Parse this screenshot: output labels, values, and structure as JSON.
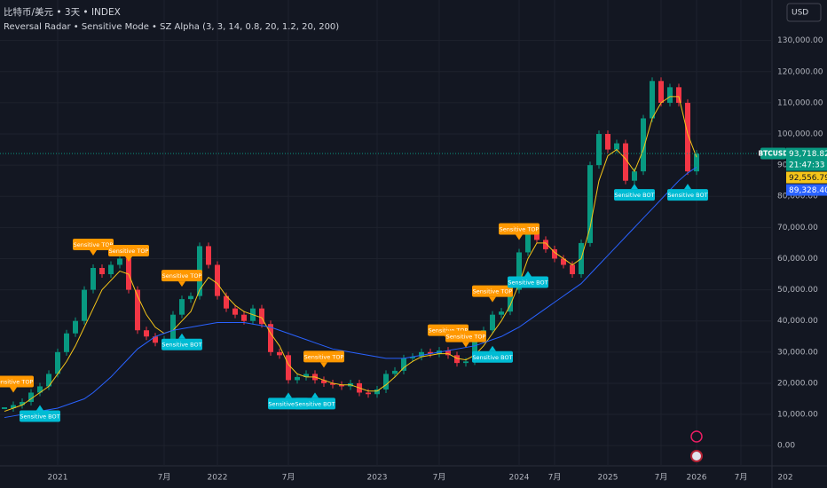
{
  "chart_data": {
    "type": "candlestick",
    "title": "比特币/美元 • 3天 • INDEX",
    "subtitle": "Reversal Radar • Sensitive Mode • SZ Alpha (3, 3, 14, 0.8, 20, 1.2, 20, 200)",
    "currency": "USD",
    "categories": [
      null,
      null,
      null,
      null,
      null,
      null,
      "2021",
      null,
      null,
      null,
      null,
      null,
      null,
      null,
      null,
      null,
      null,
      null,
      "7月",
      null,
      null,
      null,
      null,
      null,
      "2022",
      null,
      null,
      null,
      null,
      null,
      null,
      null,
      "7月",
      null,
      null,
      null,
      null,
      null,
      null,
      null,
      null,
      null,
      "2023",
      null,
      null,
      null,
      null,
      null,
      null,
      "7月",
      null,
      null,
      null,
      null,
      null,
      null,
      null,
      null,
      "2024",
      null,
      null,
      null,
      "7月",
      null,
      null,
      null,
      null,
      null,
      "2025",
      null,
      null,
      null,
      null,
      null,
      "7月",
      null,
      null,
      null,
      "2026",
      null,
      null,
      null,
      null,
      "7月",
      null,
      null,
      null,
      null,
      "202"
    ],
    "candles": {
      "up_color": "#089981",
      "down_color": "#f23645",
      "values": [
        12000,
        13000,
        14000,
        17000,
        19000,
        23000,
        30000,
        36000,
        40000,
        50000,
        57000,
        55000,
        58000,
        60000,
        50000,
        37000,
        35000,
        33000,
        34000,
        42000,
        47000,
        48000,
        64000,
        58000,
        48000,
        44000,
        42000,
        40000,
        44000,
        39000,
        30000,
        29000,
        21000,
        22000,
        23000,
        21000,
        20000,
        19500,
        19000,
        20000,
        17000,
        16500,
        18000,
        23000,
        24000,
        28000,
        28500,
        30000,
        29500,
        30500,
        29000,
        26500,
        27000,
        34000,
        37000,
        42000,
        43000,
        50000,
        62000,
        70000,
        66000,
        63000,
        60000,
        58000,
        55000,
        65000,
        90000,
        100000,
        95000,
        97000,
        85000,
        88000,
        105000,
        117000,
        110000,
        115000,
        110000,
        88000,
        93718.82,
        null,
        null,
        null,
        null,
        null,
        null,
        null,
        null,
        null,
        null
      ]
    },
    "series": [
      {
        "color": "#f5c518",
        "values": [
          11000,
          12000,
          13000,
          15000,
          17000,
          19000,
          23000,
          27000,
          32000,
          38000,
          44000,
          50000,
          53000,
          56000,
          55000,
          48000,
          42000,
          38000,
          36000,
          37000,
          40000,
          43000,
          50000,
          54000,
          52000,
          48000,
          45000,
          43000,
          42000,
          41000,
          36000,
          32000,
          26000,
          23000,
          22000,
          22000,
          21000,
          20000,
          19500,
          19500,
          18500,
          17500,
          17500,
          19500,
          22000,
          25000,
          27000,
          28500,
          29000,
          29500,
          29500,
          28000,
          27500,
          29000,
          32000,
          36000,
          40000,
          45000,
          52000,
          60000,
          65000,
          65000,
          62000,
          60000,
          58000,
          60000,
          70000,
          85000,
          93000,
          95000,
          92000,
          88000,
          95000,
          105000,
          110000,
          112000,
          112000,
          100000,
          92556.79,
          null,
          null,
          null,
          null,
          null,
          null,
          null,
          null,
          null,
          null
        ]
      },
      {
        "color": "#2962ff",
        "values": [
          9000,
          9500,
          10000,
          10500,
          11000,
          11500,
          12000,
          13000,
          14000,
          15000,
          17000,
          19500,
          22000,
          25000,
          28000,
          31000,
          33000,
          35000,
          36000,
          37000,
          37500,
          38000,
          38500,
          39000,
          39500,
          39500,
          39500,
          39500,
          39000,
          38500,
          38000,
          37000,
          36000,
          35000,
          34000,
          33000,
          32000,
          31000,
          30500,
          30000,
          29500,
          29000,
          28500,
          28000,
          28000,
          28000,
          28500,
          29000,
          29500,
          30000,
          30500,
          31000,
          31500,
          32000,
          33000,
          34000,
          35000,
          36500,
          38000,
          40000,
          42000,
          44000,
          46000,
          48000,
          50000,
          52000,
          55000,
          58000,
          61000,
          64000,
          67000,
          70000,
          73000,
          76000,
          79000,
          82000,
          85000,
          87500,
          89328.4,
          null,
          null,
          null,
          null,
          null,
          null,
          null,
          null,
          null,
          null
        ]
      }
    ],
    "annotations": [
      {
        "index": 1,
        "text": "Sensitive TOP",
        "kind": "top",
        "color": "#ff9800"
      },
      {
        "index": 4,
        "text": "Sensitive BOT",
        "kind": "bot",
        "color": "#00bcd4"
      },
      {
        "index": 10,
        "text": "Sensitive TOP",
        "kind": "top",
        "color": "#ff9800"
      },
      {
        "index": 14,
        "text": "Sensitive TOP",
        "kind": "top",
        "color": "#ff9800"
      },
      {
        "index": 20,
        "text": "Sensitive TOP",
        "kind": "top",
        "color": "#ff9800"
      },
      {
        "index": 20,
        "text": "Sensitive BOT",
        "kind": "bot",
        "color": "#00bcd4"
      },
      {
        "index": 32,
        "text": "Sensitive BOT",
        "kind": "bot",
        "color": "#00bcd4"
      },
      {
        "index": 35,
        "text": "Sensitive BOT",
        "kind": "bot",
        "color": "#00bcd4"
      },
      {
        "index": 36,
        "text": "Sensitive TOP",
        "kind": "top",
        "color": "#ff9800"
      },
      {
        "index": 50,
        "text": "Sensitive TOP",
        "kind": "top",
        "color": "#ff9800"
      },
      {
        "index": 52,
        "text": "Sensitive TOP",
        "kind": "top",
        "color": "#ff9800"
      },
      {
        "index": 55,
        "text": "Sensitive TOP",
        "kind": "top",
        "color": "#ff9800"
      },
      {
        "index": 55,
        "text": "Sensitive BOT",
        "kind": "bot",
        "color": "#00bcd4"
      },
      {
        "index": 58,
        "text": "Sensitive TOP",
        "kind": "top",
        "color": "#ff9800"
      },
      {
        "index": 59,
        "text": "Sensitive BOT",
        "kind": "bot",
        "color": "#00bcd4"
      },
      {
        "index": 71,
        "text": "Sensitive BOT",
        "kind": "bot",
        "color": "#00bcd4"
      },
      {
        "index": 77,
        "text": "Sensitive BOT",
        "kind": "bot",
        "color": "#00bcd4"
      }
    ],
    "price_tags": [
      {
        "value": 93718.82,
        "label": "93,718.82",
        "color": "#089981",
        "symbol": "BTCUSD",
        "countdown": "21:47:33"
      },
      {
        "value": 92556.79,
        "label": "92,556.79",
        "color": "#f5c518"
      },
      {
        "value": 89328.4,
        "label": "89,328.40",
        "color": "#2962ff"
      }
    ],
    "ylim": [
      -6500,
      143000
    ],
    "yticks": [
      {
        "value": 0,
        "label": "0.00"
      },
      {
        "value": 10000,
        "label": "10,000.00"
      },
      {
        "value": 20000,
        "label": "20,000.00"
      },
      {
        "value": 30000,
        "label": "30,000.00"
      },
      {
        "value": 40000,
        "label": "40,000.00"
      },
      {
        "value": 50000,
        "label": "50,000.00"
      },
      {
        "value": 60000,
        "label": "60,000.00"
      },
      {
        "value": 70000,
        "label": "70,000.00"
      },
      {
        "value": 80000,
        "label": "80,000.00"
      },
      {
        "value": 90000,
        "label": "90,000.00"
      },
      {
        "value": 100000,
        "label": "100,000.00"
      },
      {
        "value": 110000,
        "label": "110,000.00"
      },
      {
        "value": 120000,
        "label": "120,000.00"
      },
      {
        "value": 130000,
        "label": "130,000.00"
      }
    ],
    "grid": true
  }
}
